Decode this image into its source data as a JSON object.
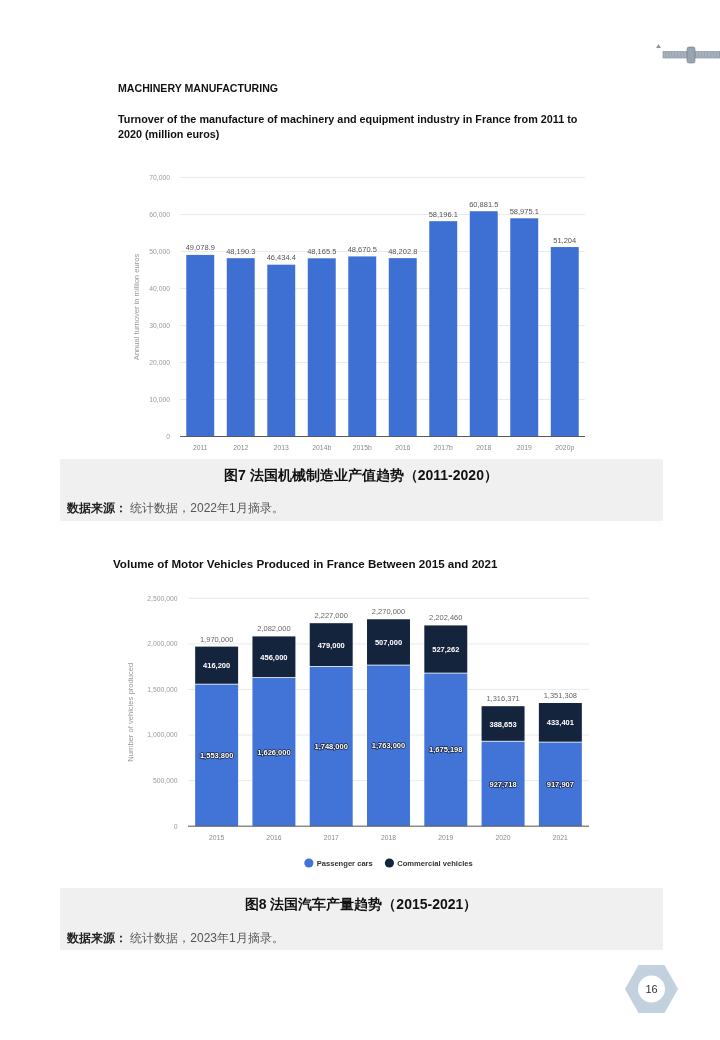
{
  "chart_data": [
    {
      "type": "bar",
      "title": "Turnover of the manufacture of machinery and equipment industry in France from 2011 to 2020 (million euros)",
      "ylabel": "Annual turnover in million euros",
      "categories": [
        "2011",
        "2012",
        "2013",
        "2014b",
        "2015b",
        "2016",
        "2017b",
        "2018",
        "2019",
        "2020p"
      ],
      "values": [
        49078.9,
        48190.3,
        46434.4,
        48165.5,
        48670.5,
        48202.8,
        58196.1,
        60881.5,
        58975.1,
        51204
      ],
      "color": "#3e6fd3",
      "value_labels": [
        "49,078.9",
        "48,190.3",
        "46,434.4",
        "48,165.5",
        "48,670.5",
        "48,202.8",
        "58,196.1",
        "60,881.5",
        "58,975.1",
        "51,204"
      ],
      "ylim": [
        0,
        70000
      ],
      "yticks": [
        0,
        {
          "value": 10000,
          "label": "10,000"
        },
        {
          "value": 20000,
          "label": "20,000"
        },
        {
          "value": 30000,
          "label": "30,000"
        },
        {
          "value": 40000,
          "label": "40,000"
        },
        {
          "value": 50000,
          "label": "50,000"
        },
        {
          "value": 60000,
          "label": "60,000"
        },
        {
          "value": 70000,
          "label": "70,000"
        }
      ],
      "grid": "y",
      "annotations": [
        "MACHINERY MANUFACTURING",
        "图7 法国机械制造业产值趋势（2011-2020）",
        "**数据来源：** 统计数据，2022年1月摘录。"
      ]
    },
    {
      "type": "bar",
      "stacked": true,
      "title": "Volume of Motor Vehicles Produced in France Between 2015 and 2021",
      "ylabel": "Number of vehicles produced",
      "categories": [
        "2015",
        "2016",
        "2017",
        "2018",
        "2019",
        "2020",
        "2021"
      ],
      "series": [
        {
          "name": "Passenger cars",
          "color": "#4274d8",
          "values": [
            1553800,
            1626000,
            1748000,
            1763000,
            1675198,
            927718,
            917907
          ],
          "value_labels": [
            "1,553,800",
            "1,626,000",
            "1,748,000",
            "1,763,000",
            "1,675,198",
            "927,718",
            "917,907"
          ]
        },
        {
          "name": "Commercial vehicles",
          "color": "#15243d",
          "values": [
            416200,
            456000,
            479000,
            507000,
            527262,
            388653,
            433401
          ],
          "value_labels": [
            "416,200",
            "456,000",
            "479,000",
            "507,000",
            "527,262",
            "388,653",
            "433,401"
          ]
        }
      ],
      "totals": [
        "1,970,000",
        "2,082,000",
        "2,227,000",
        "2,270,000",
        "2,202,460",
        "1,316,371",
        "1,351,308"
      ],
      "ylim": [
        0,
        2500000
      ],
      "yticks": [
        0,
        {
          "value": 500000,
          "label": "500,000"
        },
        {
          "value": 1000000,
          "label": "1,000,000"
        },
        {
          "value": 1500000,
          "label": "1,500,000"
        },
        {
          "value": 2000000,
          "label": "2,000,000"
        },
        {
          "value": 2500000,
          "label": "2,500,000"
        }
      ],
      "grid": "y",
      "legend": "bottom",
      "annotations": [
        "图8 法国汽车产量趋势（2015-2021）",
        "**数据来源：** 统计数据，2023年1月摘录。",
        "16"
      ]
    }
  ]
}
